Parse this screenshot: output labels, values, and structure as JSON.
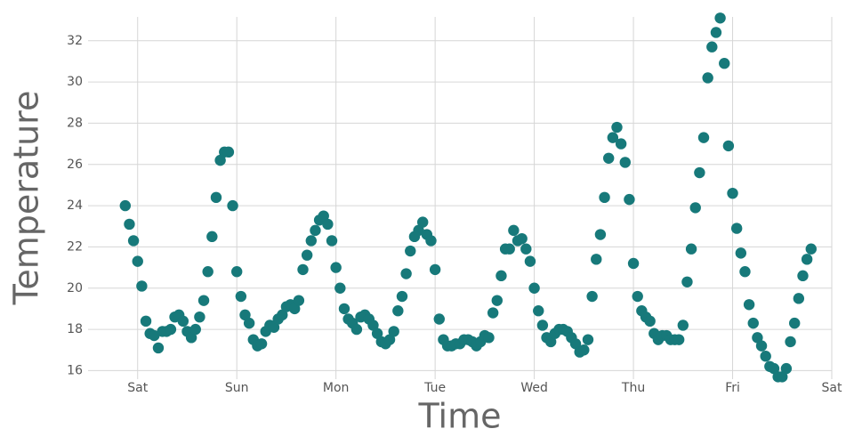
{
  "chart_data": {
    "type": "scatter",
    "xlabel": "Time",
    "ylabel": "Temperature",
    "color": "#17797a",
    "grid": true,
    "xlim": [
      -12,
      168
    ],
    "ylim": [
      15.5,
      33.5
    ],
    "xticks": [
      {
        "value": 0,
        "label": "Sat"
      },
      {
        "value": 24,
        "label": "Sun"
      },
      {
        "value": 48,
        "label": "Mon"
      },
      {
        "value": 72,
        "label": "Tue"
      },
      {
        "value": 96,
        "label": "Wed"
      },
      {
        "value": 120,
        "label": "Thu"
      },
      {
        "value": 144,
        "label": "Fri"
      },
      {
        "value": 168,
        "label": "Sat"
      }
    ],
    "yticks": [
      16,
      18,
      20,
      22,
      24,
      26,
      28,
      30,
      32
    ],
    "x": [
      -3,
      -2,
      -1,
      0,
      1,
      2,
      3,
      4,
      5,
      6,
      7,
      8,
      9,
      10,
      11,
      12,
      13,
      14,
      15,
      16,
      17,
      18,
      19,
      20,
      21,
      22,
      23,
      24,
      25,
      26,
      27,
      28,
      29,
      30,
      31,
      32,
      33,
      34,
      35,
      36,
      37,
      38,
      39,
      40,
      41,
      42,
      43,
      44,
      45,
      46,
      47,
      48,
      49,
      50,
      51,
      52,
      53,
      54,
      55,
      56,
      57,
      58,
      59,
      60,
      61,
      62,
      63,
      64,
      65,
      66,
      67,
      68,
      69,
      70,
      71,
      72,
      73,
      74,
      75,
      76,
      77,
      78,
      79,
      80,
      81,
      82,
      83,
      84,
      85,
      86,
      87,
      88,
      89,
      90,
      91,
      92,
      93,
      94,
      95,
      96,
      97,
      98,
      99,
      100,
      101,
      102,
      103,
      104,
      105,
      106,
      107,
      108,
      109,
      110,
      111,
      112,
      113,
      114,
      115,
      116,
      117,
      118,
      119,
      120,
      121,
      122,
      123,
      124,
      125,
      126,
      127,
      128,
      129,
      130,
      131,
      132,
      133,
      134,
      135,
      136,
      137,
      138,
      139,
      140,
      141,
      142,
      143,
      144,
      145,
      146,
      147,
      148,
      149,
      150,
      151,
      152,
      153,
      154,
      155,
      156,
      157,
      158,
      159,
      160,
      161,
      162,
      163
    ],
    "values": [
      24.0,
      23.1,
      22.3,
      21.3,
      20.1,
      18.4,
      17.8,
      17.7,
      17.1,
      17.9,
      17.9,
      18.0,
      18.6,
      18.7,
      18.4,
      17.9,
      17.6,
      18.0,
      18.6,
      19.4,
      20.8,
      22.5,
      24.4,
      26.2,
      26.6,
      26.6,
      24.0,
      20.8,
      19.6,
      18.7,
      18.3,
      17.5,
      17.2,
      17.3,
      17.9,
      18.2,
      18.1,
      18.5,
      18.7,
      19.1,
      19.2,
      19.0,
      19.4,
      20.9,
      21.6,
      22.3,
      22.8,
      23.3,
      23.5,
      23.1,
      22.3,
      21.0,
      20.0,
      19.0,
      18.5,
      18.3,
      18.0,
      18.6,
      18.7,
      18.5,
      18.2,
      17.8,
      17.4,
      17.3,
      17.5,
      17.9,
      18.9,
      19.6,
      20.7,
      21.8,
      22.5,
      22.8,
      23.2,
      22.6,
      22.3,
      20.9,
      18.5,
      17.5,
      17.2,
      17.2,
      17.3,
      17.3,
      17.5,
      17.5,
      17.4,
      17.2,
      17.4,
      17.7,
      17.6,
      18.8,
      19.4,
      20.6,
      21.9,
      21.9,
      22.8,
      22.3,
      22.4,
      21.9,
      21.3,
      20.0,
      18.9,
      18.2,
      17.6,
      17.4,
      17.8,
      18.0,
      18.0,
      17.9,
      17.6,
      17.3,
      16.9,
      17.0,
      17.5,
      19.6,
      21.4,
      22.6,
      24.4,
      26.3,
      27.3,
      27.8,
      27.0,
      26.1,
      24.3,
      21.2,
      19.6,
      18.9,
      18.6,
      18.4,
      17.8,
      17.5,
      17.7,
      17.7,
      17.5,
      17.5,
      17.5,
      18.2,
      20.3,
      21.9,
      23.9,
      25.6,
      27.3,
      30.2,
      31.7,
      32.4,
      33.1,
      30.9,
      26.9,
      24.6,
      22.9,
      21.7,
      20.8,
      19.2,
      18.3,
      17.6,
      17.2,
      16.7,
      16.2,
      16.1,
      15.7,
      15.7,
      16.1,
      17.4,
      18.3,
      19.5,
      20.6,
      21.4,
      21.9
    ]
  }
}
